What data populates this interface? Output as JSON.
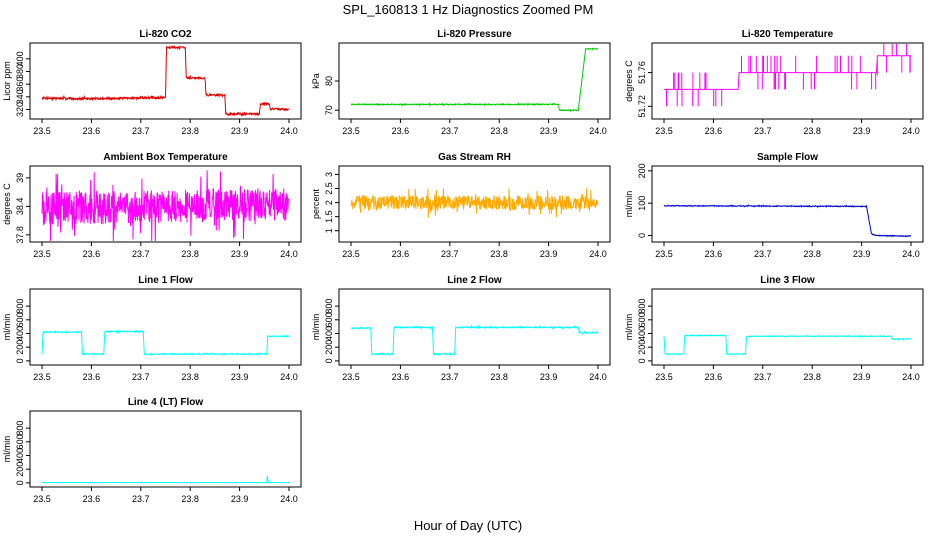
{
  "page": {
    "title": "SPL_160813  1 Hz Diagnostics Zoomed PM",
    "xlabel": "Hour of Day (UTC)"
  },
  "chart_data": [
    {
      "type": "line",
      "title": "Li-820 CO2",
      "ylabel": "Licor ppm",
      "color": "#dd0000",
      "xlim": [
        23.5,
        24.0
      ],
      "ylim": [
        305,
        425
      ],
      "yticks": [
        320,
        340,
        360,
        380,
        400
      ],
      "xticks": [
        23.5,
        23.6,
        23.7,
        23.8,
        23.9,
        24.0
      ],
      "noise": 1.5,
      "series": [
        {
          "x": [
            23.5,
            23.59,
            23.68,
            23.75,
            23.752,
            23.79,
            23.792,
            23.83,
            23.832,
            23.87,
            23.872,
            23.94,
            23.942,
            23.96,
            23.962,
            24.0
          ],
          "y": [
            338,
            337,
            338,
            339,
            418,
            418,
            370,
            370,
            343,
            343,
            313,
            313,
            329,
            329,
            321,
            320
          ]
        }
      ]
    },
    {
      "type": "line",
      "title": "Li-820 Pressure",
      "ylabel": "kPa",
      "color": "#00cc00",
      "xlim": [
        23.5,
        24.0
      ],
      "ylim": [
        67,
        93
      ],
      "yticks": [
        70,
        80
      ],
      "xticks": [
        23.5,
        23.6,
        23.7,
        23.8,
        23.9,
        24.0
      ],
      "noise": 0.15,
      "series": [
        {
          "x": [
            23.5,
            23.92,
            23.922,
            23.96,
            23.975,
            24.0
          ],
          "y": [
            72,
            72,
            70,
            70,
            91,
            91
          ]
        }
      ]
    },
    {
      "type": "line",
      "title": "Li-820 Temperature",
      "ylabel": "degrees C",
      "color": "#ff00ff",
      "xlim": [
        23.5,
        24.0
      ],
      "ylim": [
        51.705,
        51.795
      ],
      "yticks": [
        51.72,
        51.76
      ],
      "xticks": [
        23.5,
        23.6,
        23.7,
        23.8,
        23.9,
        24.0
      ],
      "noise": 0,
      "series": [
        {
          "x": [
            23.5,
            23.65,
            23.652,
            23.93,
            23.932,
            24.0
          ],
          "y": [
            51.74,
            51.74,
            51.76,
            51.76,
            51.78,
            51.78
          ]
        }
      ]
    },
    {
      "type": "line",
      "title": "Ambient Box Temperature",
      "ylabel": "degrees C",
      "color": "#ff00ff",
      "xlim": [
        23.5,
        24.0
      ],
      "ylim": [
        37.65,
        39.25
      ],
      "yticks": [
        37.8,
        38.4,
        39.0
      ],
      "xticks": [
        23.5,
        23.6,
        23.7,
        23.8,
        23.9,
        24.0
      ],
      "noise": 0.35,
      "series": [
        {
          "x": [
            23.5,
            24.0
          ],
          "y": [
            38.35,
            38.45
          ]
        }
      ]
    },
    {
      "type": "line",
      "title": "Gas Stream RH",
      "ylabel": "percent",
      "color": "#ffaa00",
      "xlim": [
        23.5,
        24.0
      ],
      "ylim": [
        0.6,
        3.3
      ],
      "yticks": [
        1.0,
        1.5,
        2.0,
        2.5,
        3.0
      ],
      "xticks": [
        23.5,
        23.6,
        23.7,
        23.8,
        23.9,
        24.0
      ],
      "noise": 0.25,
      "series": [
        {
          "x": [
            23.5,
            24.0
          ],
          "y": [
            2.0,
            2.0
          ]
        }
      ]
    },
    {
      "type": "line",
      "title": "Sample Flow",
      "ylabel": "ml/min",
      "color": "#0000cc",
      "xlim": [
        23.5,
        24.0
      ],
      "ylim": [
        -20,
        215
      ],
      "yticks": [
        0,
        100,
        200
      ],
      "xticks": [
        23.5,
        23.6,
        23.7,
        23.8,
        23.9,
        24.0
      ],
      "noise": 1.2,
      "series": [
        {
          "x": [
            23.5,
            23.91,
            23.92,
            23.93,
            24.0
          ],
          "y": [
            92,
            90,
            5,
            0,
            -2
          ]
        }
      ]
    },
    {
      "type": "line",
      "title": "Line 1 Flow",
      "ylabel": "ml/min",
      "color": "#00ffff",
      "xlim": [
        23.5,
        24.0
      ],
      "ylim": [
        -60,
        1050
      ],
      "yticks": [
        0,
        200,
        400,
        600,
        800
      ],
      "xticks": [
        23.5,
        23.6,
        23.7,
        23.8,
        23.9,
        24.0
      ],
      "noise": 6,
      "series": [
        {
          "x": [
            23.5,
            23.502,
            23.58,
            23.582,
            23.625,
            23.627,
            23.705,
            23.707,
            23.955,
            23.957,
            24.0
          ],
          "y": [
            100,
            420,
            420,
            100,
            100,
            430,
            430,
            100,
            100,
            360,
            360
          ]
        }
      ]
    },
    {
      "type": "line",
      "title": "Line 2 Flow",
      "ylabel": "ml/min",
      "color": "#00ffff",
      "xlim": [
        23.5,
        24.0
      ],
      "ylim": [
        -60,
        1050
      ],
      "yticks": [
        0,
        200,
        400,
        600,
        800
      ],
      "xticks": [
        23.5,
        23.6,
        23.7,
        23.8,
        23.9,
        24.0
      ],
      "noise": 7,
      "series": [
        {
          "x": [
            23.5,
            23.54,
            23.542,
            23.585,
            23.587,
            23.665,
            23.667,
            23.71,
            23.712,
            23.96,
            23.962,
            24.0
          ],
          "y": [
            480,
            480,
            100,
            100,
            490,
            490,
            100,
            100,
            490,
            490,
            410,
            410
          ]
        }
      ]
    },
    {
      "type": "line",
      "title": "Line 3 Flow",
      "ylabel": "ml/min",
      "color": "#00ffff",
      "xlim": [
        23.5,
        24.0
      ],
      "ylim": [
        -60,
        1050
      ],
      "yticks": [
        0,
        200,
        400,
        600,
        800
      ],
      "xticks": [
        23.5,
        23.6,
        23.7,
        23.8,
        23.9,
        24.0
      ],
      "noise": 5,
      "series": [
        {
          "x": [
            23.5,
            23.502,
            23.54,
            23.542,
            23.625,
            23.627,
            23.665,
            23.667,
            23.96,
            23.962,
            24.0
          ],
          "y": [
            360,
            100,
            100,
            370,
            370,
            100,
            100,
            360,
            360,
            320,
            320
          ]
        }
      ]
    },
    {
      "type": "line",
      "title": "Line 4 (LT) Flow",
      "ylabel": "ml/min",
      "color": "#00ffff",
      "xlim": [
        23.5,
        24.0
      ],
      "ylim": [
        -60,
        1050
      ],
      "yticks": [
        0,
        200,
        400,
        600,
        800
      ],
      "xticks": [
        23.5,
        23.6,
        23.7,
        23.8,
        23.9,
        24.0
      ],
      "noise": 0.5,
      "series": [
        {
          "x": [
            23.5,
            23.955,
            23.956,
            23.958,
            23.96,
            24.0
          ],
          "y": [
            5,
            5,
            120,
            5,
            5,
            5
          ]
        }
      ]
    }
  ]
}
